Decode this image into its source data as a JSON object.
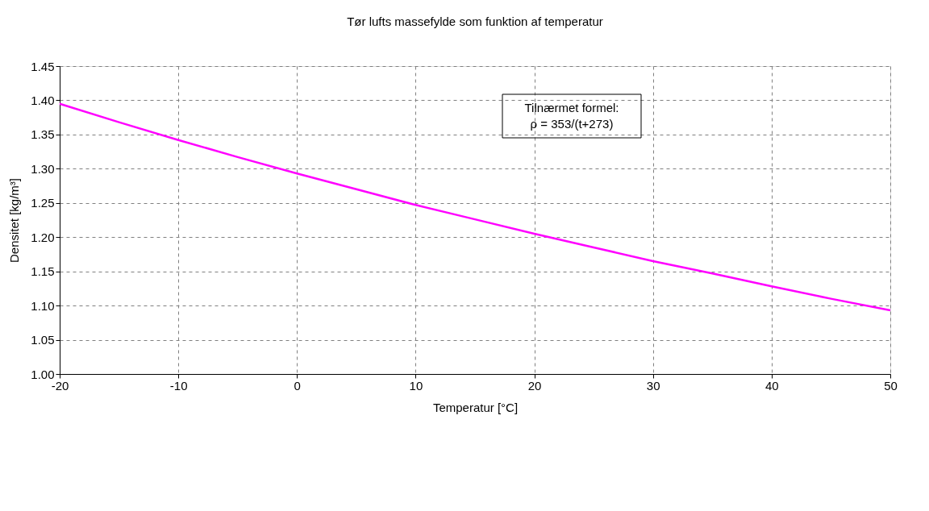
{
  "chart_data": {
    "type": "line",
    "title": "Tør lufts massefylde som funktion af temperatur",
    "xlabel": "Temperatur [°C]",
    "ylabel": "Densitet [kg/m³]",
    "annotations": [
      "Tilnærmet formel:",
      "ρ = 353/(t+273)"
    ],
    "x": [
      -20,
      -15,
      -10,
      -5,
      0,
      5,
      10,
      15,
      20,
      25,
      30,
      35,
      40,
      45,
      50
    ],
    "series": [
      {
        "color": "#ff00ff",
        "values": [
          1.395,
          1.368,
          1.342,
          1.317,
          1.293,
          1.27,
          1.247,
          1.226,
          1.205,
          1.185,
          1.165,
          1.147,
          1.128,
          1.11,
          1.093
        ]
      }
    ],
    "xlim": [
      -20,
      50
    ],
    "xticks": [
      -20,
      -10,
      0,
      10,
      20,
      30,
      40,
      50
    ],
    "ylim": [
      1.0,
      1.45
    ],
    "yticks": [
      {
        "value": 1.0,
        "label": "1.00"
      },
      {
        "value": 1.05,
        "label": "1.05"
      },
      {
        "value": 1.1,
        "label": "1.10"
      },
      {
        "value": 1.15,
        "label": "1.15"
      },
      {
        "value": 1.2,
        "label": "1.20"
      },
      {
        "value": 1.25,
        "label": "1.25"
      },
      {
        "value": 1.3,
        "label": "1.30"
      },
      {
        "value": 1.35,
        "label": "1.35"
      },
      {
        "value": 1.4,
        "label": "1.40"
      },
      {
        "value": 1.45,
        "label": "1.45"
      }
    ],
    "grid": true,
    "marker": "none",
    "line_style": "solid"
  }
}
